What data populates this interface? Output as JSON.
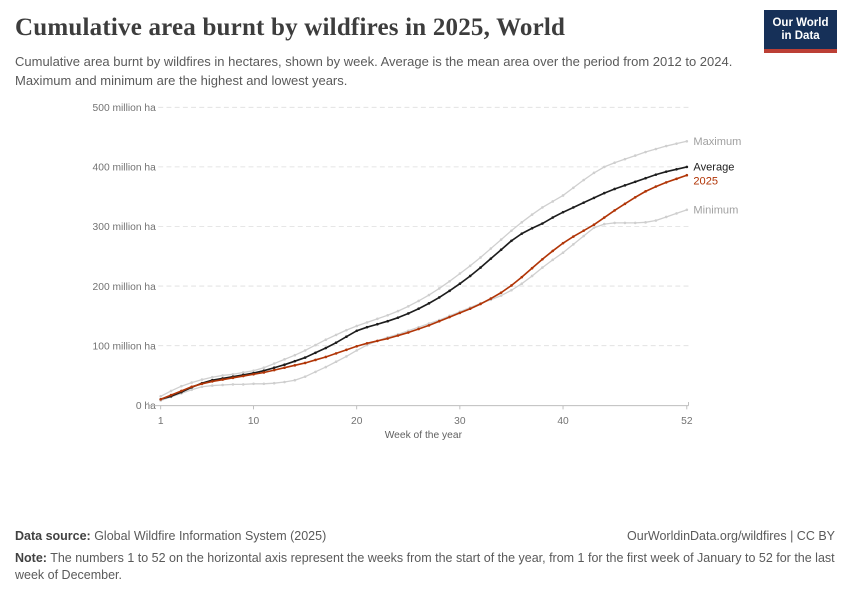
{
  "header": {
    "title": "Cumulative area burnt by wildfires in 2025, World",
    "subtitle": "Cumulative area burnt by wildfires in hectares, shown by week. Average is the mean area over the period from 2012 to 2024. Maximum and minimum are the highest and lowest years.",
    "logo": {
      "line1": "Our World",
      "line2": "in Data",
      "bg": "#163058",
      "stripe": "#bc3f35",
      "text_color": "#ffffff"
    }
  },
  "chart_data": {
    "type": "line",
    "title": "Cumulative area burnt by wildfires in 2025, World",
    "xlabel": "Week of the year",
    "ylabel": "",
    "y_unit": "million ha",
    "ylim": [
      0,
      500
    ],
    "grid": "horizontal-dashed",
    "legend_position": "end-of-line-labels",
    "x": [
      1,
      2,
      3,
      4,
      5,
      6,
      7,
      8,
      9,
      10,
      11,
      12,
      13,
      14,
      15,
      16,
      17,
      18,
      19,
      20,
      21,
      22,
      23,
      24,
      25,
      26,
      27,
      28,
      29,
      30,
      31,
      32,
      33,
      34,
      35,
      36,
      37,
      38,
      39,
      40,
      41,
      42,
      43,
      44,
      45,
      46,
      47,
      48,
      49,
      50,
      51,
      52
    ],
    "x_ticks": [
      1,
      10,
      20,
      30,
      40,
      52
    ],
    "y_ticks": [
      {
        "value": 0,
        "label": "0 ha"
      },
      {
        "value": 100,
        "label": "100 million ha"
      },
      {
        "value": 200,
        "label": "200 million ha"
      },
      {
        "value": 300,
        "label": "300 million ha"
      },
      {
        "value": 400,
        "label": "400 million ha"
      },
      {
        "value": 500,
        "label": "500 million ha"
      }
    ],
    "series": [
      {
        "name": "Maximum",
        "color": "#cfcfcf",
        "label_color": "#a0a0a0",
        "width": 1.6,
        "z": 1,
        "values": [
          15,
          24,
          32,
          38,
          43,
          47,
          50,
          52,
          55,
          58,
          63,
          70,
          77,
          84,
          92,
          101,
          110,
          118,
          126,
          133,
          139,
          145,
          151,
          158,
          166,
          175,
          185,
          196,
          208,
          221,
          234,
          248,
          263,
          278,
          293,
          307,
          320,
          332,
          342,
          352,
          365,
          378,
          390,
          400,
          407,
          413,
          419,
          425,
          430,
          435,
          439,
          443
        ]
      },
      {
        "name": "Average",
        "color": "#1d1d1d",
        "label_color": "#1d1d1d",
        "width": 2,
        "z": 2,
        "values": [
          10,
          15,
          22,
          30,
          37,
          42,
          45,
          48,
          51,
          54,
          58,
          63,
          68,
          74,
          80,
          88,
          96,
          105,
          115,
          125,
          131,
          136,
          141,
          147,
          154,
          162,
          171,
          181,
          192,
          204,
          217,
          231,
          246,
          261,
          276,
          288,
          297,
          305,
          315,
          324,
          332,
          340,
          348,
          356,
          363,
          369,
          375,
          381,
          387,
          392,
          396,
          400
        ]
      },
      {
        "name": "2025",
        "color": "#b13507",
        "label_color": "#b13507",
        "width": 2,
        "z": 3,
        "values": [
          10,
          17,
          24,
          31,
          36,
          40,
          43,
          46,
          49,
          52,
          55,
          59,
          63,
          67,
          71,
          76,
          81,
          87,
          93,
          99,
          104,
          108,
          112,
          117,
          122,
          128,
          134,
          141,
          148,
          155,
          162,
          170,
          179,
          189,
          201,
          215,
          230,
          245,
          259,
          272,
          283,
          293,
          303,
          315,
          327,
          338,
          349,
          359,
          367,
          374,
          380,
          386
        ]
      },
      {
        "name": "Minimum",
        "color": "#cfcfcf",
        "label_color": "#a0a0a0",
        "width": 1.6,
        "z": 1,
        "values": [
          8,
          14,
          20,
          26,
          31,
          33,
          34,
          35,
          35,
          36,
          36,
          37,
          39,
          42,
          48,
          56,
          64,
          73,
          82,
          92,
          101,
          108,
          114,
          119,
          125,
          131,
          137,
          143,
          150,
          157,
          164,
          171,
          177,
          184,
          193,
          204,
          217,
          231,
          244,
          256,
          270,
          284,
          298,
          304,
          306,
          306,
          306,
          307,
          310,
          316,
          322,
          328
        ]
      }
    ]
  },
  "footer": {
    "datasource_label": "Data source:",
    "datasource_value": " Global Wildfire Information System (2025)",
    "attribution": "OurWorldinData.org/wildfires | CC BY",
    "note_label": "Note:",
    "note_value": " The numbers 1 to 52 on the horizontal axis represent the weeks from the start of the year, from 1 for the first week of January to 52 for the last week of December."
  }
}
